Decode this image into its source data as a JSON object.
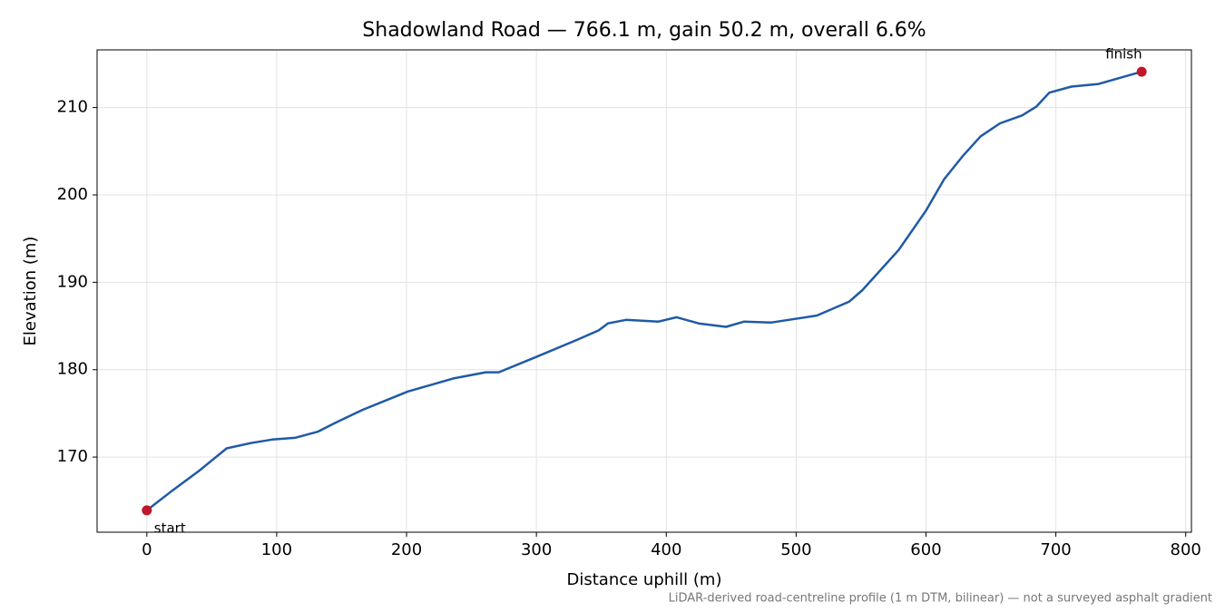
{
  "chart_data": {
    "type": "line",
    "title": "Shadowland Road — 766.1 m, gain 50.2 m, overall 6.6%",
    "x_label": "Distance uphill (m)",
    "y_label": "Elevation (m)",
    "footnote": "LiDAR-derived road-centreline profile (1 m DTM, bilinear) — not a surveyed asphalt gradient",
    "x": [
      0,
      20,
      40,
      61.5,
      80,
      96.5,
      114,
      131.5,
      145,
      166,
      201,
      236,
      261,
      271,
      299,
      331,
      348,
      355,
      369,
      394,
      408,
      425,
      446,
      460,
      481,
      516,
      541,
      551,
      579,
      600,
      614,
      628,
      642,
      657,
      674,
      685,
      695,
      712,
      733,
      747,
      766.1
    ],
    "values": [
      163.9,
      166.2,
      168.4,
      171.0,
      171.6,
      172.0,
      172.2,
      172.9,
      173.9,
      175.4,
      177.5,
      179.0,
      179.7,
      179.7,
      181.4,
      183.4,
      184.5,
      185.3,
      185.7,
      185.5,
      186.0,
      185.3,
      184.9,
      185.5,
      185.4,
      186.2,
      187.8,
      189.1,
      193.7,
      198.2,
      201.8,
      204.4,
      206.7,
      208.2,
      209.1,
      210.1,
      211.7,
      212.4,
      212.7,
      213.3,
      214.1
    ],
    "color": "#1f5aa6",
    "markers": [
      {
        "label": "start",
        "x": 0,
        "y": 163.9
      },
      {
        "label": "finish",
        "x": 766.1,
        "y": 214.1
      }
    ],
    "marker_color": "#c0172b",
    "xlim": [
      -38.3,
      804.4
    ],
    "ylim": [
      161.4,
      216.6
    ],
    "xticks": [
      0,
      100,
      200,
      300,
      400,
      500,
      600,
      700,
      800
    ],
    "yticks": [
      170,
      180,
      190,
      200,
      210
    ],
    "grid": true
  }
}
